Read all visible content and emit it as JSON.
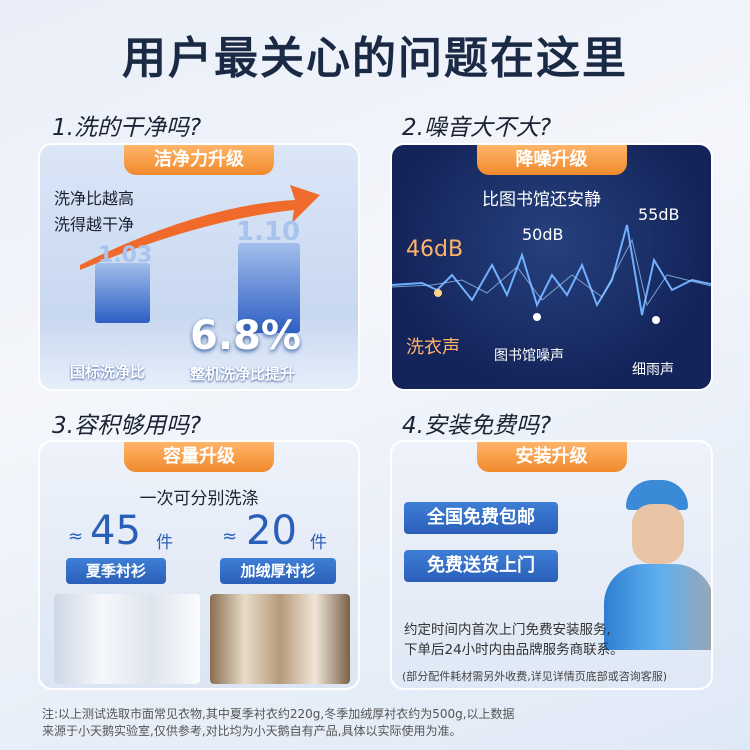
{
  "title": "用户最关心的问题在这里",
  "sections": [
    {
      "question": "1.洗的干净吗?",
      "badge": "洁净力升级",
      "line1": "洗净比越高",
      "line2": "洗得越干净",
      "value_left": "1.03",
      "value_right": "1.10",
      "increase": "6.8%",
      "label_left": "国标洗净比",
      "label_right": "整机洗净比提升"
    },
    {
      "question": "2.噪音大不大?",
      "badge": "降噪升级",
      "subtitle": "比图书馆还安静",
      "db1": "46dB",
      "db2": "50dB",
      "db3": "55dB",
      "label1": "洗衣声",
      "label2": "图书馆噪声",
      "label3": "细雨声"
    },
    {
      "question": "3.容积够用吗?",
      "badge": "容量升级",
      "subtitle": "一次可分别洗涤",
      "approx": "≈",
      "count1": "45",
      "count2": "20",
      "unit": "件",
      "label1": "夏季衬衫",
      "label2": "加绒厚衬衫"
    },
    {
      "question": "4.安装免费吗?",
      "badge": "安装升级",
      "button1": "全国免费包邮",
      "button2": "免费送货上门",
      "desc1": "约定时间内首次上门免费安装服务,",
      "desc2": "下单后24小时内由品牌服务商联系。",
      "note": "(部分配件耗材需另外收费,详见详情页底部或咨询客服)"
    }
  ],
  "footnote1": "注:以上测试选取市面常见衣物,其中夏季衬衣约220g,冬季加绒厚衬衣约为500g,以上数据",
  "footnote2": "来源于小天鹅实验室,仅供参考,对比均为小天鹅自有产品,具体以实际使用为准。",
  "colors": {
    "accent": "#f08a2c",
    "navy": "#14245a",
    "blue": "#2a5fb8"
  }
}
